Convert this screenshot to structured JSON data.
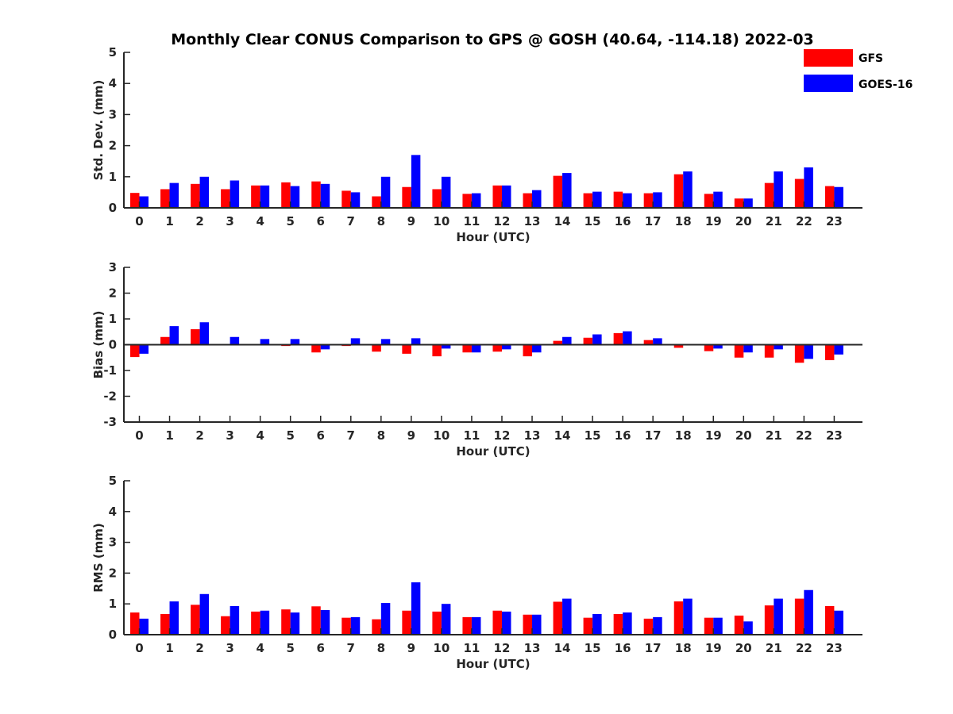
{
  "figure": {
    "title": "Monthly Clear CONUS Comparison to GPS @ GOSH (40.64, -114.18) 2022-03",
    "legend_placement": "top-right"
  },
  "legend": [
    {
      "name": "GFS",
      "color": "#ff0000"
    },
    {
      "name": "GOES-16",
      "color": "#0000ff"
    }
  ],
  "chart_data": [
    {
      "type": "bar",
      "xlabel": "Hour (UTC)",
      "ylabel": "Std. Dev. (mm)",
      "ylim": [
        0,
        5
      ],
      "yticks": [
        0,
        1,
        2,
        3,
        4,
        5
      ],
      "categories": [
        "0",
        "1",
        "2",
        "3",
        "4",
        "5",
        "6",
        "7",
        "8",
        "9",
        "10",
        "11",
        "12",
        "13",
        "14",
        "15",
        "16",
        "17",
        "18",
        "19",
        "20",
        "21",
        "22",
        "23"
      ],
      "series": [
        {
          "name": "GFS",
          "color": "#ff0000",
          "values": [
            0.48,
            0.6,
            0.77,
            0.6,
            0.72,
            0.82,
            0.85,
            0.55,
            0.37,
            0.67,
            0.6,
            0.45,
            0.72,
            0.47,
            1.03,
            0.47,
            0.52,
            0.47,
            1.08,
            0.45,
            0.3,
            0.8,
            0.93,
            0.7
          ]
        },
        {
          "name": "GOES-16",
          "color": "#0000ff",
          "values": [
            0.37,
            0.8,
            1.0,
            0.88,
            0.72,
            0.7,
            0.77,
            0.5,
            1.0,
            1.7,
            1.0,
            0.47,
            0.72,
            0.57,
            1.12,
            0.52,
            0.47,
            0.5,
            1.17,
            0.52,
            0.3,
            1.17,
            1.3,
            0.67
          ]
        }
      ]
    },
    {
      "type": "bar",
      "xlabel": "Hour (UTC)",
      "ylabel": "Bias (mm)",
      "ylim": [
        -3,
        3
      ],
      "yticks": [
        -3,
        -2,
        -1,
        0,
        1,
        2,
        3
      ],
      "categories": [
        "0",
        "1",
        "2",
        "3",
        "4",
        "5",
        "6",
        "7",
        "8",
        "9",
        "10",
        "11",
        "12",
        "13",
        "14",
        "15",
        "16",
        "17",
        "18",
        "19",
        "20",
        "21",
        "22",
        "23"
      ],
      "series": [
        {
          "name": "GFS",
          "color": "#ff0000",
          "values": [
            -0.48,
            0.3,
            0.6,
            0.0,
            0.0,
            -0.05,
            -0.3,
            -0.05,
            -0.27,
            -0.35,
            -0.45,
            -0.3,
            -0.27,
            -0.45,
            0.15,
            0.27,
            0.45,
            0.18,
            -0.12,
            -0.25,
            -0.5,
            -0.5,
            -0.7,
            -0.6
          ]
        },
        {
          "name": "GOES-16",
          "color": "#0000ff",
          "values": [
            -0.35,
            0.72,
            0.87,
            0.3,
            0.22,
            0.22,
            -0.18,
            0.25,
            0.22,
            0.25,
            -0.15,
            -0.3,
            -0.18,
            -0.3,
            0.3,
            0.4,
            0.52,
            0.25,
            0.02,
            -0.15,
            -0.3,
            -0.18,
            -0.55,
            -0.38
          ]
        }
      ]
    },
    {
      "type": "bar",
      "xlabel": "Hour (UTC)",
      "ylabel": "RMS (mm)",
      "ylim": [
        0,
        5
      ],
      "yticks": [
        0,
        1,
        2,
        3,
        4,
        5
      ],
      "categories": [
        "0",
        "1",
        "2",
        "3",
        "4",
        "5",
        "6",
        "7",
        "8",
        "9",
        "10",
        "11",
        "12",
        "13",
        "14",
        "15",
        "16",
        "17",
        "18",
        "19",
        "20",
        "21",
        "22",
        "23"
      ],
      "series": [
        {
          "name": "GFS",
          "color": "#ff0000",
          "values": [
            0.72,
            0.67,
            0.97,
            0.6,
            0.75,
            0.82,
            0.92,
            0.55,
            0.5,
            0.78,
            0.75,
            0.57,
            0.78,
            0.65,
            1.07,
            0.55,
            0.67,
            0.52,
            1.08,
            0.55,
            0.62,
            0.95,
            1.17,
            0.93
          ]
        },
        {
          "name": "GOES-16",
          "color": "#0000ff",
          "values": [
            0.52,
            1.08,
            1.32,
            0.93,
            0.78,
            0.72,
            0.8,
            0.57,
            1.03,
            1.7,
            1.0,
            0.57,
            0.75,
            0.65,
            1.17,
            0.67,
            0.72,
            0.57,
            1.17,
            0.55,
            0.43,
            1.17,
            1.45,
            0.78
          ]
        }
      ]
    }
  ]
}
